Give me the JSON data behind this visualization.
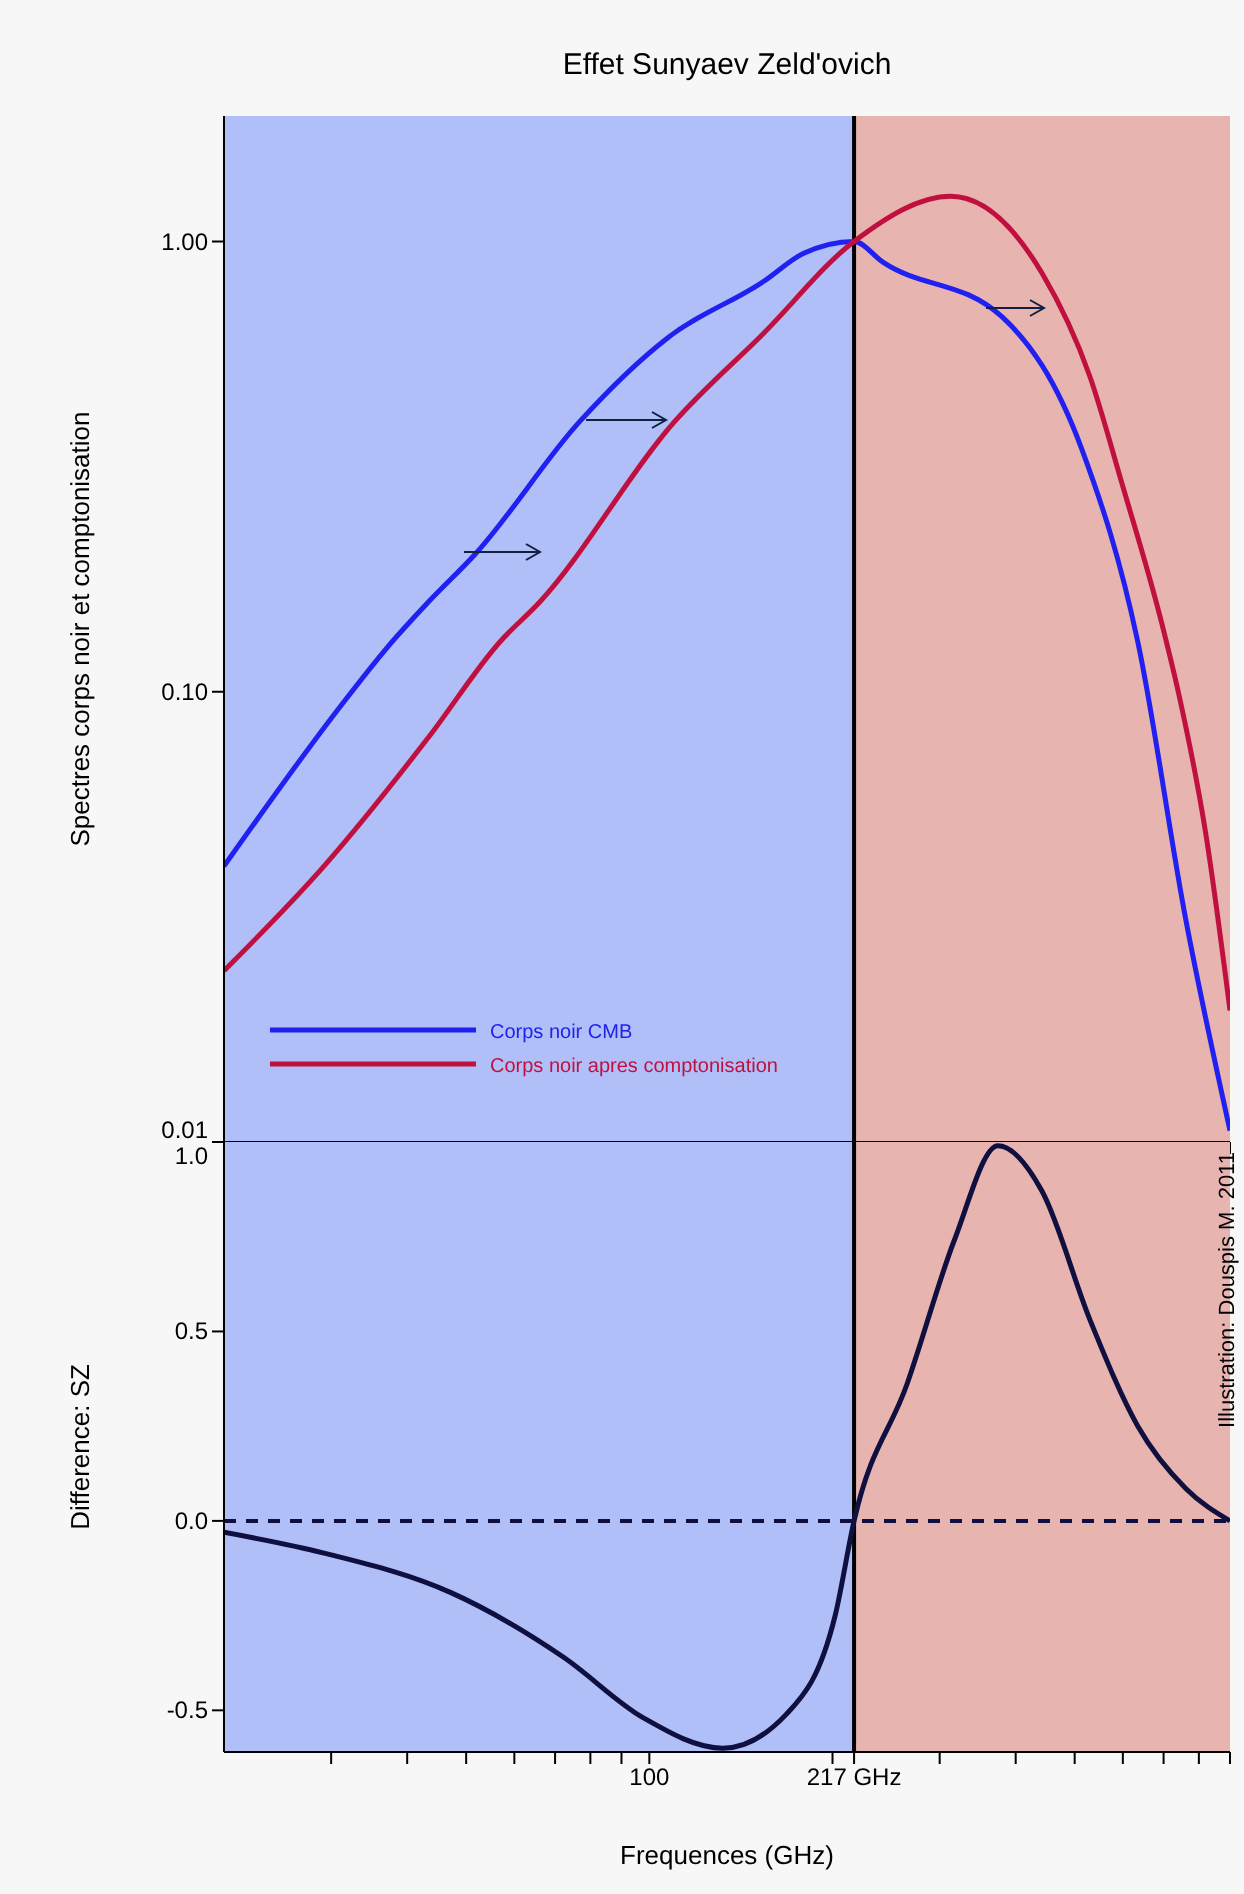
{
  "chart_data": [
    {
      "type": "line",
      "title": "Effet Sunyaev Zeld'ovich",
      "ylabel": "Spectres corps noir et comptonisation",
      "log": "xy",
      "legend": "bottom left",
      "tick_labels": "y",
      "xlim": [
        20,
        900
      ],
      "ylim": [
        0.01,
        1.9
      ],
      "xticks": [
        {
          "value": 30,
          "label": null
        },
        {
          "value": 40,
          "label": null
        },
        {
          "value": 50,
          "label": null
        },
        {
          "value": 60,
          "label": null
        },
        {
          "value": 70,
          "label": null
        },
        {
          "value": 80,
          "label": null
        },
        {
          "value": 90,
          "label": null
        },
        {
          "value": 100,
          "label": null
        },
        {
          "value": 200,
          "label": null
        },
        {
          "value": 300,
          "label": null
        },
        {
          "value": 400,
          "label": null
        },
        {
          "value": 500,
          "label": null
        },
        {
          "value": 600,
          "label": null
        },
        {
          "value": 700,
          "label": null
        },
        {
          "value": 800,
          "label": null
        },
        {
          "value": 900,
          "label": null
        }
      ],
      "yticks": [
        {
          "value": 0.01,
          "label": "0.01"
        },
        {
          "value": 0.1,
          "label": "0.10"
        },
        {
          "value": 1,
          "label": "1.00"
        }
      ],
      "bands": [
        {
          "axis": "x",
          "from": 20,
          "to": 217,
          "color": "#b0bff8"
        },
        {
          "axis": "x",
          "from": 217,
          "to": 900,
          "color": "#e8b4b0"
        }
      ],
      "ref_lines": [
        {
          "axis": "x",
          "value": 217,
          "color": "#000000",
          "line_style": "solid"
        }
      ],
      "annotations": [
        "Illustration: Douspis M. 2011"
      ],
      "series": [
        {
          "name": "Corps noir CMB",
          "color": "#2020f0",
          "x": [
            20,
            31.1,
            37.2,
            43.3,
            51.9,
            76.8,
            107,
            154,
            179,
            217,
            242,
            380,
            514,
            635,
            762,
            900
          ],
          "values": [
            0.041,
            0.093,
            0.126,
            0.158,
            0.203,
            0.398,
            0.61,
            0.815,
            0.94,
            1.0,
            0.9,
            0.68,
            0.345,
            0.129,
            0.031,
            0.0106
          ]
        },
        {
          "name": "Corps noir apres comptonisation",
          "color": "#c01040",
          "x": [
            20,
            29.2,
            43.3,
            56.8,
            66,
            110,
            154,
            217,
            313,
            442,
            530,
            598,
            697,
            740,
            822,
            900
          ],
          "values": [
            0.024,
            0.041,
            0.079,
            0.129,
            0.158,
            0.398,
            0.625,
            1.0,
            1.26,
            0.85,
            0.5,
            0.29,
            0.14,
            0.1,
            0.048,
            0.0196
          ]
        }
      ]
    },
    {
      "type": "line",
      "xlabel": "Frequences (GHz)",
      "ylabel": "Difference: SZ",
      "log": "x",
      "xlim": [
        20,
        900
      ],
      "ylim": [
        -0.61,
        1.0
      ],
      "xticks": [
        {
          "value": 30,
          "label": null
        },
        {
          "value": 40,
          "label": null
        },
        {
          "value": 50,
          "label": null
        },
        {
          "value": 60,
          "label": null
        },
        {
          "value": 70,
          "label": null
        },
        {
          "value": 80,
          "label": null
        },
        {
          "value": 90,
          "label": null
        },
        {
          "value": 100,
          "label": "100"
        },
        {
          "value": 200,
          "label": null
        },
        {
          "value": 217,
          "label": "217 GHz"
        },
        {
          "value": 300,
          "label": null
        },
        {
          "value": 400,
          "label": null
        },
        {
          "value": 500,
          "label": null
        },
        {
          "value": 600,
          "label": null
        },
        {
          "value": 700,
          "label": null
        },
        {
          "value": 800,
          "label": null
        },
        {
          "value": 900,
          "label": null
        }
      ],
      "yticks": [
        {
          "value": -0.5,
          "label": "-0.5"
        },
        {
          "value": 0,
          "label": "0.0"
        },
        {
          "value": 0.5,
          "label": "0.5"
        },
        {
          "value": 1.0,
          "label": "1.0"
        }
      ],
      "bands": [
        {
          "axis": "x",
          "from": 20,
          "to": 217,
          "color": "#b0bff8"
        },
        {
          "axis": "x",
          "from": 217,
          "to": 900,
          "color": "#e8b4b0"
        }
      ],
      "ref_lines": [
        {
          "axis": "y",
          "value": 0,
          "color": "#101040",
          "line_style": "dashed"
        },
        {
          "axis": "x",
          "value": 217,
          "color": "#000000",
          "line_style": "solid"
        }
      ],
      "series": [
        {
          "color": "#101040",
          "x": [
            20,
            29.2,
            47.3,
            72.3,
            97.8,
            132,
            168,
            202,
            217,
            265,
            317,
            374,
            442,
            530,
            635,
            762,
            900
          ],
          "values": [
            -0.03,
            -0.085,
            -0.19,
            -0.36,
            -0.52,
            -0.6,
            -0.51,
            -0.25,
            0,
            0.36,
            0.74,
            0.99,
            0.87,
            0.53,
            0.25,
            0.085,
            0
          ]
        }
      ]
    }
  ]
}
